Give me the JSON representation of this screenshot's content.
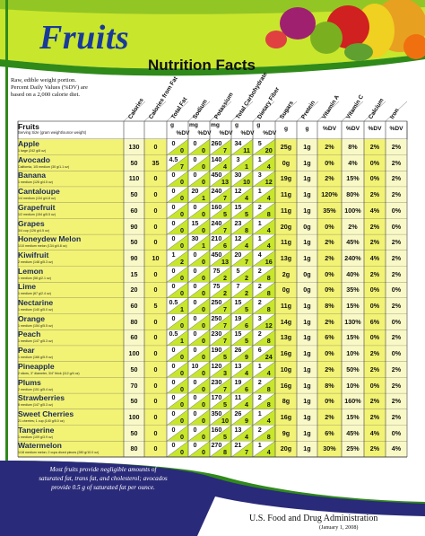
{
  "title": "Fruits",
  "subtitle": "Nutrition Facts",
  "intro_lines": [
    "Raw, edible weight portion.",
    "Percent Daily Values (%DV) are",
    "based on a 2,000 calorie diet."
  ],
  "colors": {
    "header_green": "#c8e62c",
    "dark_green": "#2f8a1a",
    "row_yellow": "#f2f275",
    "row_light": "#f9f9c8",
    "title_blue": "#1a3a9a",
    "footnote_blue": "#2a2a7a",
    "fruit_name_blue": "#1a2a5a"
  },
  "columns": [
    "Calories",
    "Calories from Fat",
    "Total Fat",
    "Sodium",
    "Potassium",
    "Total Carbohydrate",
    "Dietary Fiber",
    "Sugars",
    "Protein",
    "Vitamin A",
    "Vitamin C",
    "Calcium",
    "Iron"
  ],
  "table_header": {
    "fruits": "Fruits",
    "serving": "Serving Size (gram weight/ounce weight)",
    "unit_g": "g",
    "unit_mg": "mg",
    "unit_dv": "%DV"
  },
  "fruits": [
    {
      "name": "Apple",
      "serving": "1 large (242 g/8 oz)",
      "cal": "130",
      "calfat": "0",
      "fat_g": "0",
      "fat_dv": "0",
      "sod_mg": "0",
      "sod_dv": "0",
      "pot_mg": "260",
      "pot_dv": "7",
      "carb_g": "34",
      "carb_dv": "11",
      "fib_g": "5",
      "fib_dv": "20",
      "sugars": "25g",
      "protein": "1g",
      "vita": "2%",
      "vitc": "8%",
      "calcium": "2%",
      "iron": "2%"
    },
    {
      "name": "Avocado",
      "serving": "California, 1/5 medium (30 g/1.1 oz)",
      "cal": "50",
      "calfat": "35",
      "fat_g": "4.5",
      "fat_dv": "7",
      "sod_mg": "0",
      "sod_dv": "0",
      "pot_mg": "140",
      "pot_dv": "4",
      "carb_g": "3",
      "carb_dv": "1",
      "fib_g": "1",
      "fib_dv": "4",
      "sugars": "0g",
      "protein": "1g",
      "vita": "0%",
      "vitc": "4%",
      "calcium": "0%",
      "iron": "2%"
    },
    {
      "name": "Banana",
      "serving": "1 medium (126 g/4.5 oz)",
      "cal": "110",
      "calfat": "0",
      "fat_g": "0",
      "fat_dv": "0",
      "sod_mg": "0",
      "sod_dv": "0",
      "pot_mg": "450",
      "pot_dv": "13",
      "carb_g": "30",
      "carb_dv": "10",
      "fib_g": "3",
      "fib_dv": "12",
      "sugars": "19g",
      "protein": "1g",
      "vita": "2%",
      "vitc": "15%",
      "calcium": "0%",
      "iron": "2%"
    },
    {
      "name": "Cantaloupe",
      "serving": "1/4 medium (134 g/4.8 oz)",
      "cal": "50",
      "calfat": "0",
      "fat_g": "0",
      "fat_dv": "0",
      "sod_mg": "20",
      "sod_dv": "1",
      "pot_mg": "240",
      "pot_dv": "7",
      "carb_g": "12",
      "carb_dv": "4",
      "fib_g": "1",
      "fib_dv": "4",
      "sugars": "11g",
      "protein": "1g",
      "vita": "120%",
      "vitc": "80%",
      "calcium": "2%",
      "iron": "2%"
    },
    {
      "name": "Grapefruit",
      "serving": "1/2 medium (154 g/5.5 oz)",
      "cal": "60",
      "calfat": "0",
      "fat_g": "0",
      "fat_dv": "0",
      "sod_mg": "0",
      "sod_dv": "0",
      "pot_mg": "160",
      "pot_dv": "5",
      "carb_g": "15",
      "carb_dv": "5",
      "fib_g": "2",
      "fib_dv": "8",
      "sugars": "11g",
      "protein": "1g",
      "vita": "35%",
      "vitc": "100%",
      "calcium": "4%",
      "iron": "0%"
    },
    {
      "name": "Grapes",
      "serving": "3/4 cup (126 g/4.5 oz)",
      "cal": "90",
      "calfat": "0",
      "fat_g": "0",
      "fat_dv": "0",
      "sod_mg": "15",
      "sod_dv": "0",
      "pot_mg": "240",
      "pot_dv": "7",
      "carb_g": "23",
      "carb_dv": "8",
      "fib_g": "1",
      "fib_dv": "4",
      "sugars": "20g",
      "protein": "0g",
      "vita": "0%",
      "vitc": "2%",
      "calcium": "2%",
      "iron": "0%"
    },
    {
      "name": "Honeydew Melon",
      "serving": "1/10 medium melon (134 g/4.8 oz)",
      "cal": "50",
      "calfat": "0",
      "fat_g": "0",
      "fat_dv": "0",
      "sod_mg": "30",
      "sod_dv": "1",
      "pot_mg": "210",
      "pot_dv": "6",
      "carb_g": "12",
      "carb_dv": "4",
      "fib_g": "1",
      "fib_dv": "4",
      "sugars": "11g",
      "protein": "1g",
      "vita": "2%",
      "vitc": "45%",
      "calcium": "2%",
      "iron": "2%"
    },
    {
      "name": "Kiwifruit",
      "serving": "2 medium (148 g/5.3 oz)",
      "cal": "90",
      "calfat": "10",
      "fat_g": "1",
      "fat_dv": "2",
      "sod_mg": "0",
      "sod_dv": "0",
      "pot_mg": "450",
      "pot_dv": "13",
      "carb_g": "20",
      "carb_dv": "7",
      "fib_g": "4",
      "fib_dv": "16",
      "sugars": "13g",
      "protein": "1g",
      "vita": "2%",
      "vitc": "240%",
      "calcium": "4%",
      "iron": "2%"
    },
    {
      "name": "Lemon",
      "serving": "1 medium (58 g/2.1 oz)",
      "cal": "15",
      "calfat": "0",
      "fat_g": "0",
      "fat_dv": "0",
      "sod_mg": "0",
      "sod_dv": "0",
      "pot_mg": "75",
      "pot_dv": "2",
      "carb_g": "5",
      "carb_dv": "2",
      "fib_g": "2",
      "fib_dv": "8",
      "sugars": "2g",
      "protein": "0g",
      "vita": "0%",
      "vitc": "40%",
      "calcium": "2%",
      "iron": "2%"
    },
    {
      "name": "Lime",
      "serving": "1 medium (67 g/2.4 oz)",
      "cal": "20",
      "calfat": "0",
      "fat_g": "0",
      "fat_dv": "0",
      "sod_mg": "0",
      "sod_dv": "0",
      "pot_mg": "75",
      "pot_dv": "2",
      "carb_g": "7",
      "carb_dv": "2",
      "fib_g": "2",
      "fib_dv": "8",
      "sugars": "0g",
      "protein": "0g",
      "vita": "0%",
      "vitc": "35%",
      "calcium": "0%",
      "iron": "0%"
    },
    {
      "name": "Nectarine",
      "serving": "1 medium (140 g/5.0 oz)",
      "cal": "60",
      "calfat": "5",
      "fat_g": "0.5",
      "fat_dv": "1",
      "sod_mg": "0",
      "sod_dv": "0",
      "pot_mg": "250",
      "pot_dv": "7",
      "carb_g": "15",
      "carb_dv": "5",
      "fib_g": "2",
      "fib_dv": "8",
      "sugars": "11g",
      "protein": "1g",
      "vita": "8%",
      "vitc": "15%",
      "calcium": "0%",
      "iron": "2%"
    },
    {
      "name": "Orange",
      "serving": "1 medium (154 g/5.5 oz)",
      "cal": "80",
      "calfat": "0",
      "fat_g": "0",
      "fat_dv": "0",
      "sod_mg": "0",
      "sod_dv": "0",
      "pot_mg": "250",
      "pot_dv": "7",
      "carb_g": "19",
      "carb_dv": "6",
      "fib_g": "3",
      "fib_dv": "12",
      "sugars": "14g",
      "protein": "1g",
      "vita": "2%",
      "vitc": "130%",
      "calcium": "6%",
      "iron": "0%"
    },
    {
      "name": "Peach",
      "serving": "1 medium (147 g/5.3 oz)",
      "cal": "60",
      "calfat": "0",
      "fat_g": "0.5",
      "fat_dv": "1",
      "sod_mg": "0",
      "sod_dv": "0",
      "pot_mg": "230",
      "pot_dv": "7",
      "carb_g": "15",
      "carb_dv": "5",
      "fib_g": "2",
      "fib_dv": "8",
      "sugars": "13g",
      "protein": "1g",
      "vita": "6%",
      "vitc": "15%",
      "calcium": "0%",
      "iron": "2%"
    },
    {
      "name": "Pear",
      "serving": "1 medium (166 g/5.9 oz)",
      "cal": "100",
      "calfat": "0",
      "fat_g": "0",
      "fat_dv": "0",
      "sod_mg": "0",
      "sod_dv": "0",
      "pot_mg": "190",
      "pot_dv": "5",
      "carb_g": "26",
      "carb_dv": "9",
      "fib_g": "6",
      "fib_dv": "24",
      "sugars": "16g",
      "protein": "1g",
      "vita": "0%",
      "vitc": "10%",
      "calcium": "2%",
      "iron": "0%"
    },
    {
      "name": "Pineapple",
      "serving": "2 slices, 3\" diameter, 3/4\" thick (112 g/4 oz)",
      "cal": "50",
      "calfat": "0",
      "fat_g": "0",
      "fat_dv": "0",
      "sod_mg": "10",
      "sod_dv": "0",
      "pot_mg": "120",
      "pot_dv": "3",
      "carb_g": "13",
      "carb_dv": "4",
      "fib_g": "1",
      "fib_dv": "4",
      "sugars": "10g",
      "protein": "1g",
      "vita": "2%",
      "vitc": "50%",
      "calcium": "2%",
      "iron": "2%"
    },
    {
      "name": "Plums",
      "serving": "2 medium (151 g/5.4 oz)",
      "cal": "70",
      "calfat": "0",
      "fat_g": "0",
      "fat_dv": "0",
      "sod_mg": "0",
      "sod_dv": "0",
      "pot_mg": "230",
      "pot_dv": "7",
      "carb_g": "19",
      "carb_dv": "6",
      "fib_g": "2",
      "fib_dv": "8",
      "sugars": "16g",
      "protein": "1g",
      "vita": "8%",
      "vitc": "10%",
      "calcium": "0%",
      "iron": "2%"
    },
    {
      "name": "Strawberries",
      "serving": "8 medium (147 g/5.3 oz)",
      "cal": "50",
      "calfat": "0",
      "fat_g": "0",
      "fat_dv": "0",
      "sod_mg": "0",
      "sod_dv": "0",
      "pot_mg": "170",
      "pot_dv": "5",
      "carb_g": "11",
      "carb_dv": "4",
      "fib_g": "2",
      "fib_dv": "8",
      "sugars": "8g",
      "protein": "1g",
      "vita": "0%",
      "vitc": "160%",
      "calcium": "2%",
      "iron": "2%"
    },
    {
      "name": "Sweet Cherries",
      "serving": "21 cherries; 1 cup (140 g/5.0 oz)",
      "cal": "100",
      "calfat": "0",
      "fat_g": "0",
      "fat_dv": "0",
      "sod_mg": "0",
      "sod_dv": "0",
      "pot_mg": "350",
      "pot_dv": "10",
      "carb_g": "26",
      "carb_dv": "9",
      "fib_g": "1",
      "fib_dv": "4",
      "sugars": "16g",
      "protein": "1g",
      "vita": "2%",
      "vitc": "15%",
      "calcium": "2%",
      "iron": "2%"
    },
    {
      "name": "Tangerine",
      "serving": "1 medium (109 g/3.9 oz)",
      "cal": "50",
      "calfat": "0",
      "fat_g": "0",
      "fat_dv": "0",
      "sod_mg": "0",
      "sod_dv": "0",
      "pot_mg": "160",
      "pot_dv": "5",
      "carb_g": "13",
      "carb_dv": "4",
      "fib_g": "2",
      "fib_dv": "8",
      "sugars": "9g",
      "protein": "1g",
      "vita": "6%",
      "vitc": "45%",
      "calcium": "4%",
      "iron": "0%"
    },
    {
      "name": "Watermelon",
      "serving": "1/18 medium melon; 2 cups diced pieces (280 g/10.0 oz)",
      "cal": "80",
      "calfat": "0",
      "fat_g": "0",
      "fat_dv": "0",
      "sod_mg": "0",
      "sod_dv": "0",
      "pot_mg": "270",
      "pot_dv": "8",
      "carb_g": "21",
      "carb_dv": "7",
      "fib_g": "1",
      "fib_dv": "4",
      "sugars": "20g",
      "protein": "1g",
      "vita": "30%",
      "vitc": "25%",
      "calcium": "2%",
      "iron": "4%"
    }
  ],
  "footnote_lines": [
    "Most fruits provide negligible amounts of",
    "saturated fat, trans fat, and cholesterol; avocados",
    "provide 0.5 g of saturated fat per ounce."
  ],
  "fda": "U.S. Food and Drug Administration",
  "date": "(January 1, 2008)"
}
